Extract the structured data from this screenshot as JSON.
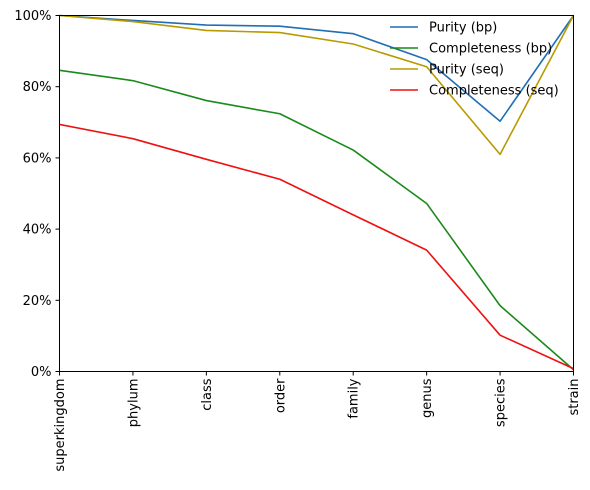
{
  "chart_data": {
    "type": "line",
    "title": "",
    "xlabel": "",
    "ylabel": "",
    "categories": [
      "superkingdom",
      "phylum",
      "class",
      "order",
      "family",
      "genus",
      "species",
      "strain"
    ],
    "ylim": [
      0,
      100
    ],
    "yticks": [
      "0%",
      "20%",
      "40%",
      "60%",
      "80%",
      "100%"
    ],
    "ytick_values": [
      0,
      20,
      40,
      60,
      80,
      100
    ],
    "grid": false,
    "legend_position": "top-right",
    "series": [
      {
        "name": "Purity (bp)",
        "color": "#1f6fb4",
        "values": [
          100,
          98.6,
          97.3,
          97.0,
          94.9,
          87.6,
          70.3,
          100
        ]
      },
      {
        "name": "Completeness (bp)",
        "color": "#1a8a1a",
        "values": [
          84.6,
          81.7,
          76.1,
          72.4,
          62.2,
          47.2,
          18.5,
          0.5
        ]
      },
      {
        "name": "Purity (seq)",
        "color": "#b89a00",
        "values": [
          100,
          98.3,
          95.8,
          95.2,
          92.0,
          85.6,
          61.0,
          100
        ]
      },
      {
        "name": "Completeness (seq)",
        "color": "#ee1111",
        "values": [
          69.4,
          65.4,
          59.6,
          54.0,
          44.0,
          34.1,
          10.2,
          0.8
        ]
      }
    ]
  }
}
